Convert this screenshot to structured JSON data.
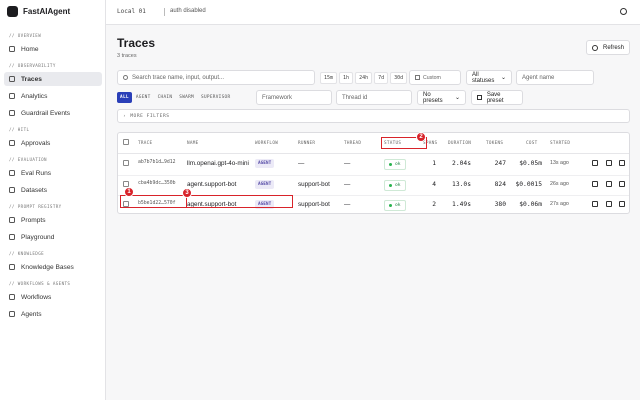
{
  "brand": "FastAIAgent",
  "topbar": {
    "env": "Local 01",
    "auth": "auth disabled"
  },
  "sidebar": [
    {
      "section": "// OVERVIEW",
      "items": [
        "Home"
      ]
    },
    {
      "section": "// OBSERVABILITY",
      "items": [
        "Traces",
        "Analytics",
        "Guardrail Events"
      ]
    },
    {
      "section": "// HITL",
      "items": [
        "Approvals"
      ]
    },
    {
      "section": "// EVALUATION",
      "items": [
        "Eval Runs",
        "Datasets"
      ]
    },
    {
      "section": "// PROMPT REGISTRY",
      "items": [
        "Prompts",
        "Playground"
      ]
    },
    {
      "section": "// KNOWLEDGE",
      "items": [
        "Knowledge Bases"
      ]
    },
    {
      "section": "// WORKFLOWS & AGENTS",
      "items": [
        "Workflows",
        "Agents"
      ]
    }
  ],
  "active_nav": [
    1,
    0
  ],
  "page": {
    "title": "Traces",
    "subtitle": "3 traces",
    "refresh": "Refresh"
  },
  "filters": {
    "search": "Search trace name, input, output...",
    "ranges": [
      "15m",
      "1h",
      "24h",
      "7d",
      "30d",
      "All"
    ],
    "active_range": 5,
    "custom": "Custom",
    "status": "All statuses",
    "agent": "Agent name",
    "types": [
      "ALL",
      "AGENT",
      "CHAIN",
      "SWARM",
      "SUPERVISOR"
    ],
    "active_type": 0,
    "framework": "Framework",
    "thread": "Thread id",
    "presets": "No presets",
    "save": "Save preset",
    "more": "MORE FILTERS"
  },
  "table": {
    "columns": [
      "TRACE",
      "NAME",
      "WORKFLOW",
      "RUNNER",
      "THREAD",
      "STATUS",
      "SPANS",
      "DURATION",
      "TOKENS",
      "COST",
      "STARTED"
    ],
    "rows": [
      [
        "ab7b7b1d…9d12",
        "llm.openai.gpt-4o-mini",
        "AGENT",
        "—",
        "—",
        "ok",
        1,
        "2.04s",
        247,
        "$0.05m",
        "13s ago"
      ],
      [
        "cba4b9dc…350b",
        "agent.support-bot",
        "AGENT",
        "support-bot",
        "—",
        "ok",
        4,
        "13.0s",
        824,
        "$0.0015",
        "26s ago"
      ],
      [
        "b5be1d22…570f",
        "agent.support-bot",
        "AGENT",
        "support-bot",
        "—",
        "ok",
        2,
        "1.49s",
        380,
        "$0.06m",
        "27s ago"
      ]
    ]
  },
  "annotations": [
    {
      "label": "1"
    },
    {
      "label": "2"
    },
    {
      "label": "3"
    }
  ]
}
